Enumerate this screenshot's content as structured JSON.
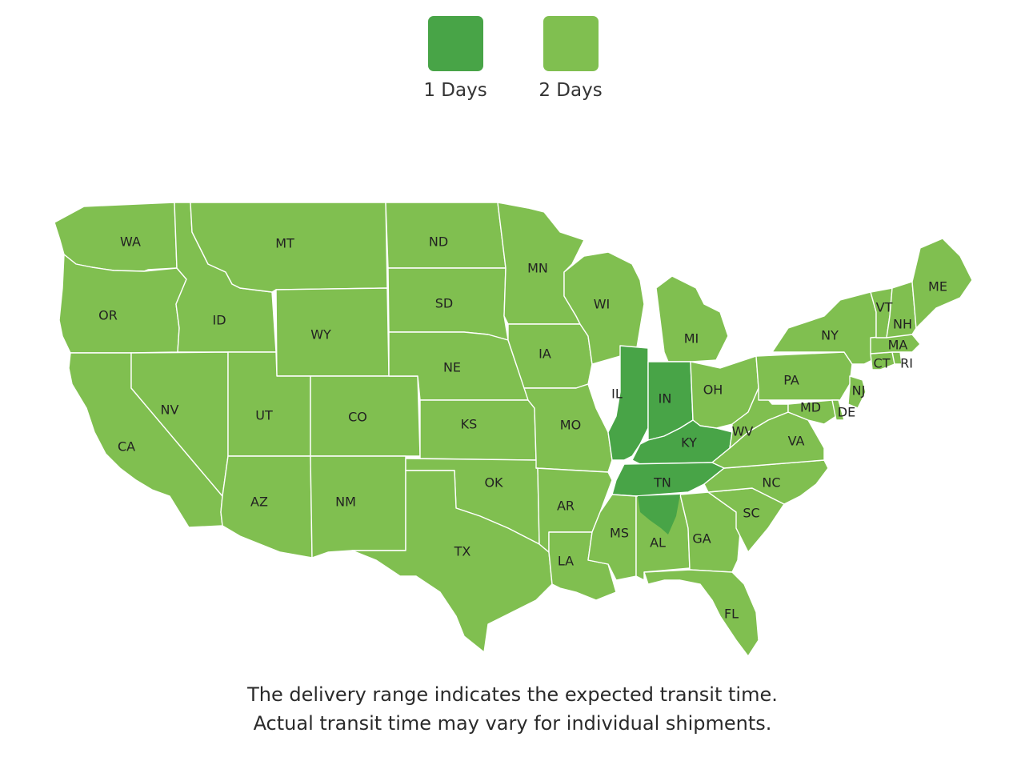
{
  "legend": [
    {
      "label": "1 Days",
      "color": "#48a447"
    },
    {
      "label": "2 Days",
      "color": "#80bf50"
    }
  ],
  "map": {
    "states": [
      {
        "code": "WA",
        "days": 2
      },
      {
        "code": "OR",
        "days": 2
      },
      {
        "code": "CA",
        "days": 2
      },
      {
        "code": "ID",
        "days": 2
      },
      {
        "code": "NV",
        "days": 2
      },
      {
        "code": "MT",
        "days": 2
      },
      {
        "code": "WY",
        "days": 2
      },
      {
        "code": "UT",
        "days": 2
      },
      {
        "code": "AZ",
        "days": 2
      },
      {
        "code": "CO",
        "days": 2
      },
      {
        "code": "NM",
        "days": 2
      },
      {
        "code": "ND",
        "days": 2
      },
      {
        "code": "SD",
        "days": 2
      },
      {
        "code": "NE",
        "days": 2
      },
      {
        "code": "KS",
        "days": 2
      },
      {
        "code": "OK",
        "days": 2
      },
      {
        "code": "TX",
        "days": 2
      },
      {
        "code": "MN",
        "days": 2
      },
      {
        "code": "IA",
        "days": 2
      },
      {
        "code": "MO",
        "days": 2
      },
      {
        "code": "AR",
        "days": 2
      },
      {
        "code": "LA",
        "days": 2
      },
      {
        "code": "WI",
        "days": 2
      },
      {
        "code": "IL",
        "days": 1
      },
      {
        "code": "MI",
        "days": 2
      },
      {
        "code": "IN",
        "days": 1
      },
      {
        "code": "OH",
        "days": 2
      },
      {
        "code": "KY",
        "days": 1
      },
      {
        "code": "TN",
        "days": 1
      },
      {
        "code": "MS",
        "days": 2
      },
      {
        "code": "AL",
        "days": 2
      },
      {
        "code": "GA",
        "days": 2
      },
      {
        "code": "FL",
        "days": 2
      },
      {
        "code": "SC",
        "days": 2
      },
      {
        "code": "NC",
        "days": 2
      },
      {
        "code": "VA",
        "days": 2
      },
      {
        "code": "WV",
        "days": 2
      },
      {
        "code": "PA",
        "days": 2
      },
      {
        "code": "NY",
        "days": 2
      },
      {
        "code": "MD",
        "days": 2
      },
      {
        "code": "DE",
        "days": 2
      },
      {
        "code": "NJ",
        "days": 2
      },
      {
        "code": "CT",
        "days": 2
      },
      {
        "code": "RI",
        "days": 2
      },
      {
        "code": "MA",
        "days": 2
      },
      {
        "code": "VT",
        "days": 2
      },
      {
        "code": "NH",
        "days": 2
      },
      {
        "code": "ME",
        "days": 2
      }
    ],
    "partial_one_day_states": [
      "AL"
    ]
  },
  "caption": {
    "line1": "The delivery range indicates the expected transit time.",
    "line2": "Actual transit time may vary for individual shipments."
  }
}
